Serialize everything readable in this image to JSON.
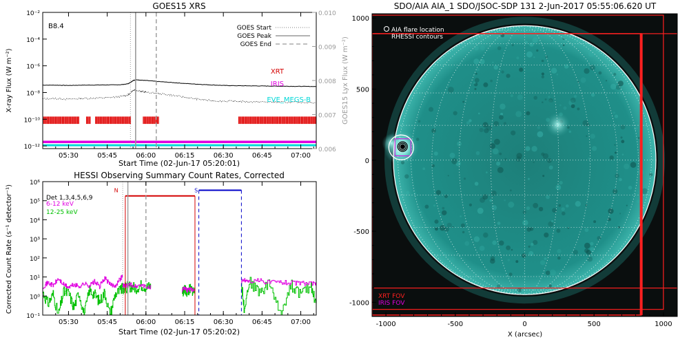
{
  "chart_data": [
    {
      "type": "line",
      "title": "GOES15 XRS",
      "xlabel": "Start Time (02-Jun-17 05:20:01)",
      "ylabel": "X-ray Flux (W m⁻²)",
      "ylabel_right": "GOES15 Lyx Flux (W m⁻²)",
      "annotation": "B8.4",
      "x_ticks": [
        "05:30",
        "05:45",
        "06:00",
        "06:15",
        "06:30",
        "06:45",
        "07:00"
      ],
      "x_tick_minutes": [
        10,
        25,
        40,
        55,
        70,
        85,
        100
      ],
      "xlim_minutes": [
        0,
        106
      ],
      "y_ticks": [
        "10⁻²",
        "10⁻⁴",
        "10⁻⁶",
        "10⁻⁸",
        "10⁻¹⁰",
        "10⁻¹²"
      ],
      "y_tick_exponents": [
        -2,
        -4,
        -6,
        -8,
        -10,
        -12
      ],
      "ylim_log": [
        -12.2,
        -2
      ],
      "y2_ticks": [
        "0.010",
        "0.009",
        "0.008",
        "0.007",
        "0.006"
      ],
      "y2lim": [
        0.006,
        0.01
      ],
      "legend": [
        {
          "label": "GOES Start",
          "style": "dotted"
        },
        {
          "label": "GOES Peak",
          "style": "solid"
        },
        {
          "label": "GOES End",
          "style": "dashed"
        }
      ],
      "event_lines_minutes": {
        "start": 34,
        "peak": 36,
        "end": 44
      },
      "series": [
        {
          "name": "long",
          "x_minutes": [
            0,
            5,
            10,
            15,
            20,
            25,
            30,
            33,
            34,
            35,
            36,
            38,
            40,
            45,
            50,
            55,
            60,
            65,
            70,
            75,
            80,
            85,
            90,
            95,
            100,
            106
          ],
          "log_flux": [
            -7.45,
            -7.45,
            -7.47,
            -7.45,
            -7.44,
            -7.43,
            -7.42,
            -7.35,
            -7.25,
            -7.1,
            -7.05,
            -7.07,
            -7.1,
            -7.18,
            -7.25,
            -7.32,
            -7.38,
            -7.43,
            -7.47,
            -7.49,
            -7.5,
            -7.51,
            -7.52,
            -7.53,
            -7.54,
            -7.55
          ]
        },
        {
          "name": "short",
          "x_minutes": [
            0,
            5,
            10,
            15,
            20,
            25,
            30,
            33,
            34,
            35,
            36,
            38,
            40,
            45,
            50,
            55,
            60,
            65,
            70,
            75,
            80,
            85,
            90,
            95,
            100,
            106
          ],
          "log_flux": [
            -8.48,
            -8.45,
            -8.5,
            -8.45,
            -8.42,
            -8.4,
            -8.3,
            -8.2,
            -8.05,
            -7.85,
            -7.8,
            -7.9,
            -7.98,
            -8.08,
            -8.2,
            -8.35,
            -8.5,
            -8.6,
            -8.65,
            -8.65,
            -8.7,
            -8.7,
            -8.72,
            -8.73,
            -8.74,
            -8.75
          ]
        }
      ],
      "instrument_labels": [
        {
          "label": "XRT",
          "color": "#d40000"
        },
        {
          "label": "IRIS",
          "color": "#e000e0"
        },
        {
          "label": "EVE_MEGS-B",
          "color": "#00d8d8"
        }
      ],
      "xrt_coverage_minutes": [
        [
          0,
          14
        ],
        [
          17,
          18.5
        ],
        [
          20.5,
          34
        ],
        [
          39,
          45
        ],
        [
          76,
          106
        ]
      ],
      "iris_level_log": -11.7,
      "eve_level_log": -11.95
    },
    {
      "type": "line",
      "title": "HESSI Observing Summary Count Rates, Corrected",
      "xlabel": "Start Time (02-Jun-17 05:20:02)",
      "ylabel": "Corrected Count Rate (s⁻¹ detector⁻¹)",
      "x_ticks": [
        "05:30",
        "05:45",
        "06:00",
        "06:15",
        "06:30",
        "06:45",
        "07:00"
      ],
      "x_tick_minutes": [
        10,
        25,
        40,
        55,
        70,
        85,
        100
      ],
      "xlim_minutes": [
        0,
        106
      ],
      "y_ticks": [
        "10⁶",
        "10⁵",
        "10⁴",
        "10³",
        "10²",
        "10¹",
        "10⁰",
        "10⁻¹"
      ],
      "y_tick_exponents": [
        6,
        5,
        4,
        3,
        2,
        1,
        0,
        -1
      ],
      "ylim_log": [
        -1,
        6
      ],
      "legend": [
        {
          "label": "Det 1,3,4,5,6,9",
          "color": "#000000"
        },
        {
          "label": "6-12 keV",
          "color": "#e000e0"
        },
        {
          "label": "12-25 keV",
          "color": "#00c000"
        }
      ],
      "flags": [
        {
          "label": "N",
          "color": "#d40000",
          "x_minutes": 29
        },
        {
          "label": "S",
          "color": "#0000c8",
          "x_minutes": 60
        }
      ],
      "night_minutes": [
        32,
        59
      ],
      "saa_minutes": [
        60.5,
        77
      ],
      "event_lines_minutes": {
        "start": 31,
        "peak": 33,
        "end": 40
      },
      "series": [
        {
          "name": "6-12 keV",
          "segments": [
            {
              "x_minutes": [
                0,
                2,
                4,
                6,
                8,
                10,
                12,
                14,
                16,
                18,
                20,
                22,
                24,
                26,
                28,
                30,
                31
              ],
              "log_rate": [
                0.5,
                0.7,
                0.55,
                0.9,
                0.6,
                0.45,
                0.6,
                0.5,
                0.65,
                0.55,
                0.75,
                0.5,
                0.95,
                0.6,
                0.55,
                0.9,
                1.1
              ]
            },
            {
              "x_minutes": [
                31,
                32,
                34,
                36,
                38,
                40,
                42
              ],
              "log_rate": [
                0.55,
                0.5,
                0.6,
                0.5,
                0.6,
                0.45,
                0.5
              ]
            },
            {
              "x_minutes": [
                54,
                55,
                56,
                57,
                58,
                59
              ],
              "log_rate": [
                0.3,
                0.4,
                0.3,
                0.35,
                0.3,
                0.4
              ]
            },
            {
              "x_minutes": [
                77,
                78,
                80,
                84,
                88,
                92,
                96,
                100,
                104,
                106
              ],
              "log_rate": [
                0.75,
                0.85,
                0.78,
                0.8,
                0.72,
                0.74,
                0.7,
                0.68,
                0.65,
                0.6
              ]
            }
          ]
        },
        {
          "name": "12-25 keV",
          "segments": [
            {
              "x_minutes": [
                0,
                2,
                4,
                6,
                8,
                10,
                12,
                14,
                16,
                18,
                20,
                22,
                24,
                26,
                28,
                30,
                31
              ],
              "log_rate": [
                0.2,
                -0.4,
                0.1,
                -1,
                0.2,
                0.15,
                -0.6,
                0.2,
                -1,
                0.3,
                0.1,
                -0.3,
                0.2,
                -1,
                0.1,
                0.3,
                0.4
              ]
            },
            {
              "x_minutes": [
                31,
                32,
                34,
                36,
                38,
                40,
                42
              ],
              "log_rate": [
                0.4,
                0.45,
                0.5,
                0.4,
                0.55,
                0.45,
                0.5
              ]
            },
            {
              "x_minutes": [
                54,
                55,
                56,
                57,
                58,
                59
              ],
              "log_rate": [
                0.25,
                0.3,
                0.2,
                0.35,
                0.3,
                0.2
              ]
            },
            {
              "x_minutes": [
                77,
                78,
                80,
                84,
                88,
                92,
                96,
                100,
                104,
                106
              ],
              "log_rate": [
                0.65,
                -0.6,
                0.75,
                0.2,
                0.7,
                -1,
                0.6,
                0.1,
                0.55,
                -0.5
              ]
            }
          ]
        }
      ]
    },
    {
      "type": "image",
      "title": "SDO/AIA AIA_1 SDO/JSOC-SDP 131  2-Jun-2017 05:55:06.620 UT",
      "xlabel": "X (arcsec)",
      "ylabel": "Y (arcsec)",
      "x_ticks": [
        "-1000",
        "-500",
        "0",
        "500",
        "1000"
      ],
      "x_tick_values": [
        -1000,
        -500,
        0,
        500,
        1000
      ],
      "y_ticks": [
        "1000",
        "500",
        "0",
        "-500",
        "-1000"
      ],
      "y_tick_values": [
        1000,
        500,
        0,
        -500,
        -1000
      ],
      "xlim": [
        -1100,
        1100
      ],
      "ylim": [
        -1100,
        1030
      ],
      "solar_radius_arcsec": 946,
      "flare_location": [
        -890,
        90
      ],
      "rhessi_contour_center": [
        -880,
        95
      ],
      "legend": [
        {
          "label": "AIA flare location",
          "color": "#ffffff"
        },
        {
          "label": "RHESSI contours",
          "color": "#ffffff"
        }
      ],
      "fov_labels": [
        {
          "label": "XRT FOV",
          "color": "#ff2020"
        },
        {
          "label": "IRIS FOV",
          "color": "#e000e0"
        }
      ],
      "xrt_fov_boxes": [
        [
          -1100,
          -1050,
          1000,
          1020
        ],
        [
          -1110,
          -900,
          1130,
          890
        ],
        [
          -1100,
          -1090,
          840,
          890
        ]
      ],
      "iris_fov_box": [
        -935,
        30,
        -820,
        150
      ],
      "disk_color": "#1f8f89"
    }
  ]
}
